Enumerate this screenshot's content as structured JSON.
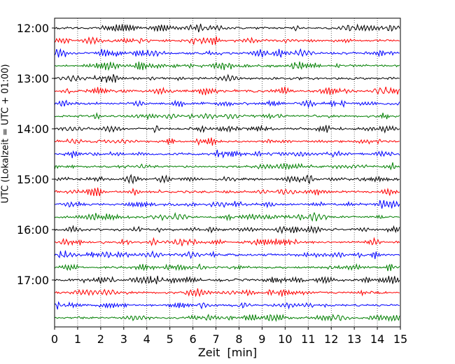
{
  "chart_data": {
    "type": "line",
    "title": "",
    "xlabel": "Zeit  [min]",
    "ylabel": "UTC (Lokalzeit = UTC + 01:00)",
    "xlim": [
      0,
      15
    ],
    "xticks": [
      "0",
      "1",
      "2",
      "3",
      "4",
      "5",
      "6",
      "7",
      "8",
      "9",
      "10",
      "11",
      "12",
      "13",
      "14",
      "15"
    ],
    "ytick_labels": [
      "12:00",
      "13:00",
      "14:00",
      "15:00",
      "16:00",
      "17:00"
    ],
    "trace_start_times": [
      "12:00",
      "12:15",
      "12:30",
      "12:45",
      "13:00",
      "13:15",
      "13:30",
      "13:45",
      "14:00",
      "14:15",
      "14:30",
      "14:45",
      "15:00",
      "15:15",
      "15:30",
      "15:45",
      "16:00",
      "16:15",
      "16:30",
      "16:45",
      "17:00",
      "17:15",
      "17:30",
      "17:45"
    ],
    "trace_minutes_per_line": 15,
    "trace_colors": [
      "#000000",
      "#ff0000",
      "#0000ff",
      "#007f00"
    ],
    "grid": "vertical-dotted",
    "legend": "none"
  }
}
